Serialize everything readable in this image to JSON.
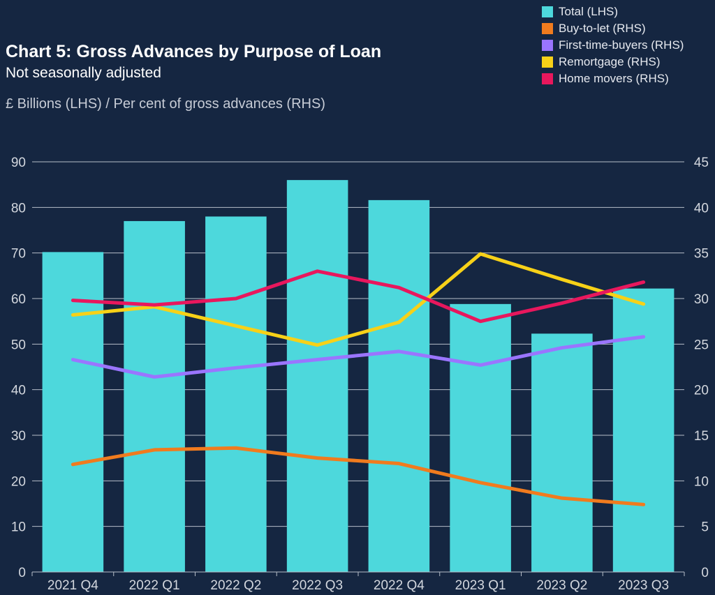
{
  "chart_data": {
    "type": "bar",
    "title": "Chart 5: Gross Advances by Purpose of Loan",
    "subtitle": "Not seasonally adjusted",
    "units_label": "£ Billions (LHS) / Per cent of gross advances (RHS)",
    "categories": [
      "2021 Q4",
      "2022 Q1",
      "2022 Q2",
      "2022 Q3",
      "2022 Q4",
      "2023 Q1",
      "2023 Q2",
      "2023 Q3"
    ],
    "left_axis": {
      "range": [
        0,
        90
      ],
      "ticks": [
        "0",
        "10",
        "20",
        "30",
        "40",
        "50",
        "60",
        "70",
        "80",
        "90"
      ]
    },
    "right_axis": {
      "range": [
        0,
        45
      ],
      "ticks": [
        "0",
        "5",
        "10",
        "15",
        "20",
        "25",
        "30",
        "35",
        "40",
        "45"
      ]
    },
    "grid": true,
    "legend_position": "top-right",
    "bars": {
      "name": "Total (LHS)",
      "axis": "left",
      "color": "#4dd8dc",
      "values": [
        70.2,
        77.0,
        78.0,
        86.0,
        81.6,
        58.8,
        52.3,
        62.2
      ]
    },
    "series": [
      {
        "name": "Buy-to-let (RHS)",
        "axis": "right",
        "type": "line",
        "color": "#f07b1e",
        "values": [
          11.8,
          13.4,
          13.6,
          12.5,
          11.9,
          9.8,
          8.1,
          7.4
        ]
      },
      {
        "name": "First-time-buyers (RHS)",
        "axis": "right",
        "type": "line",
        "color": "#9a75ff",
        "values": [
          23.3,
          21.4,
          22.4,
          23.3,
          24.2,
          22.7,
          24.6,
          25.8
        ]
      },
      {
        "name": "Remortgage (RHS)",
        "axis": "right",
        "type": "line",
        "color": "#f7d118",
        "values": [
          28.2,
          29.1,
          27.0,
          24.9,
          27.4,
          34.9,
          32.1,
          29.4
        ]
      },
      {
        "name": "Home movers (RHS)",
        "axis": "right",
        "type": "line",
        "color": "#e8175d",
        "values": [
          29.8,
          29.3,
          30.0,
          33.0,
          31.2,
          27.5,
          29.5,
          31.8
        ]
      }
    ]
  }
}
